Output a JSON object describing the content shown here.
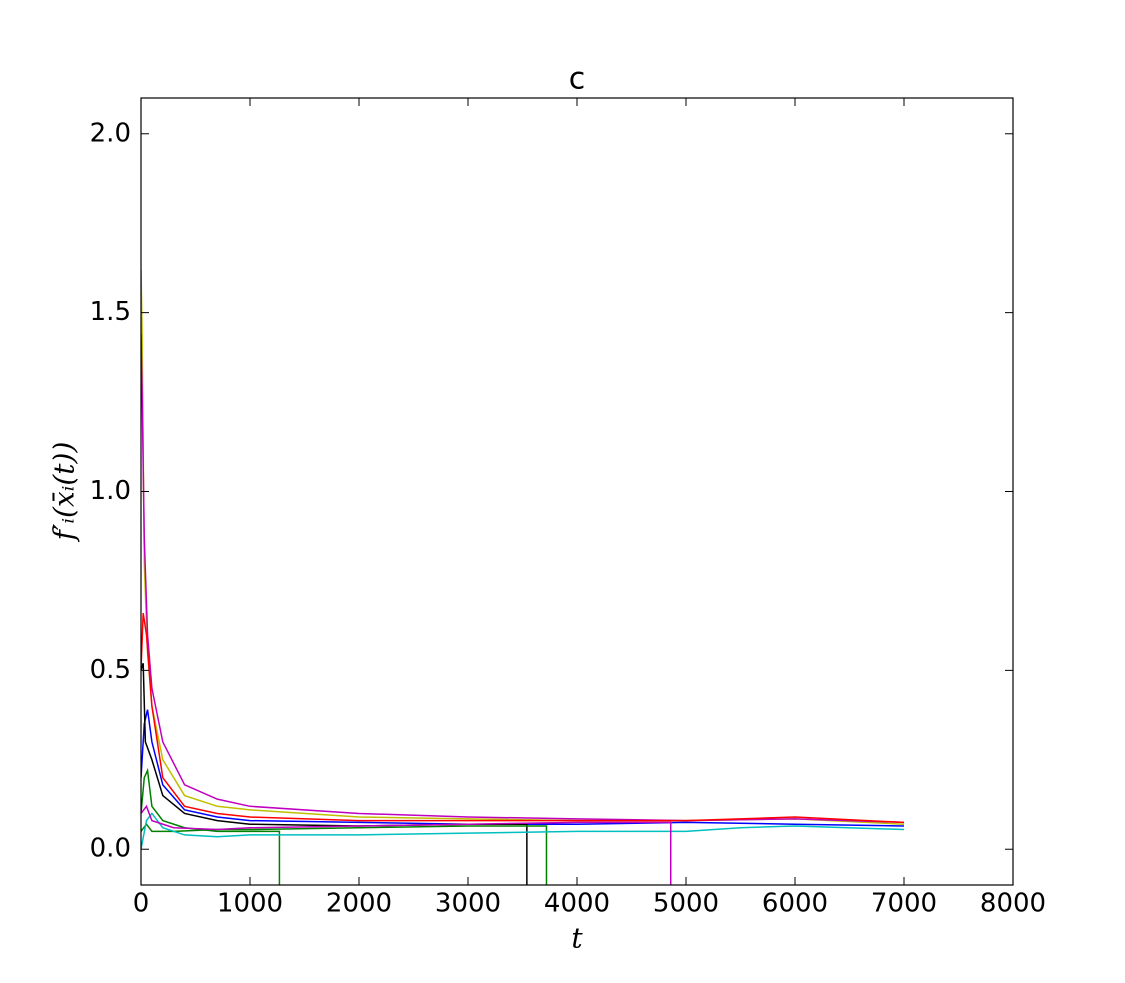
{
  "chart_data": {
    "type": "line",
    "title": "c",
    "xlabel": "t",
    "ylabel": "f′ᵢ(x̄ᵢ(t))",
    "xlim": [
      0,
      8000
    ],
    "ylim": [
      -0.1,
      2.1
    ],
    "xticks": [
      0,
      1000,
      2000,
      3000,
      4000,
      5000,
      6000,
      7000,
      8000
    ],
    "yticks": [
      {
        "value": 0,
        "label": "0.0"
      },
      {
        "value": 0.5,
        "label": "0.5"
      },
      {
        "value": 1,
        "label": "1.0"
      },
      {
        "value": 1.5,
        "label": "1.5"
      },
      {
        "value": 2,
        "label": "2.0"
      }
    ],
    "grid": false,
    "series": [
      {
        "color": "#bfbf00",
        "x": [
          0,
          10,
          30,
          60,
          100,
          200,
          400,
          700,
          1000,
          2000,
          3000,
          4000,
          5000,
          6000,
          7000
        ],
        "values": [
          1.62,
          1.45,
          0.8,
          0.55,
          0.4,
          0.25,
          0.15,
          0.12,
          0.11,
          0.09,
          0.085,
          0.08,
          0.08,
          0.085,
          0.07
        ]
      },
      {
        "color": "#bf00bf",
        "x": [
          0,
          10,
          30,
          60,
          100,
          200,
          400,
          700,
          1000,
          2000,
          3000,
          4000,
          5000,
          6000,
          7000
        ],
        "values": [
          1.44,
          1.28,
          0.87,
          0.6,
          0.45,
          0.3,
          0.18,
          0.14,
          0.12,
          0.1,
          0.09,
          0.085,
          0.08,
          0.085,
          0.075
        ]
      },
      {
        "color": "#ff0000",
        "x": [
          0,
          20,
          50,
          100,
          200,
          400,
          700,
          1000,
          2000,
          3000,
          4000,
          5000,
          6000,
          7000
        ],
        "values": [
          0.5,
          0.66,
          0.6,
          0.4,
          0.2,
          0.12,
          0.1,
          0.09,
          0.08,
          0.08,
          0.08,
          0.08,
          0.09,
          0.075
        ]
      },
      {
        "color": "#0000ff",
        "x": [
          0,
          30,
          60,
          100,
          200,
          400,
          700,
          1000,
          2000,
          3000,
          4000,
          5000,
          6000,
          7000
        ],
        "values": [
          0.2,
          0.35,
          0.39,
          0.3,
          0.18,
          0.11,
          0.09,
          0.08,
          0.075,
          0.07,
          0.07,
          0.075,
          0.07,
          0.065
        ]
      },
      {
        "color": "#000000",
        "x": [
          0,
          20,
          40,
          100,
          200,
          400,
          700,
          1000,
          2000,
          3000,
          3540,
          3540
        ],
        "values": [
          0.5,
          0.52,
          0.3,
          0.25,
          0.15,
          0.1,
          0.08,
          0.07,
          0.065,
          0.07,
          0.07,
          -0.1
        ]
      },
      {
        "color": "#008000",
        "x": [
          0,
          30,
          60,
          100,
          200,
          400,
          700,
          1270,
          1270
        ],
        "values": [
          0.1,
          0.2,
          0.22,
          0.12,
          0.08,
          0.06,
          0.05,
          0.05,
          -0.1
        ]
      },
      {
        "color": "#008000",
        "x": [
          0,
          50,
          100,
          300,
          700,
          1000,
          2000,
          3000,
          3720,
          3720
        ],
        "values": [
          0.05,
          0.07,
          0.05,
          0.05,
          0.055,
          0.055,
          0.06,
          0.065,
          0.065,
          -0.1
        ]
      },
      {
        "color": "#00bfbf",
        "x": [
          0,
          50,
          100,
          200,
          400,
          700,
          1000,
          2000,
          3000,
          4000,
          5000,
          5500,
          6000,
          7000
        ],
        "values": [
          0.0,
          0.08,
          0.1,
          0.06,
          0.04,
          0.035,
          0.04,
          0.04,
          0.045,
          0.05,
          0.05,
          0.06,
          0.065,
          0.055
        ]
      },
      {
        "color": "#bf00bf",
        "x": [
          0,
          50,
          100,
          300,
          700,
          1000,
          2000,
          3000,
          4000,
          4860,
          4860
        ],
        "values": [
          0.1,
          0.12,
          0.08,
          0.06,
          0.055,
          0.06,
          0.065,
          0.07,
          0.075,
          0.075,
          -0.1
        ]
      }
    ]
  }
}
